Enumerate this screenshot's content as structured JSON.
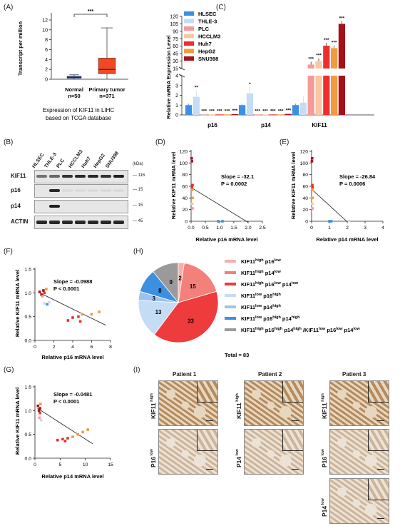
{
  "panels": {
    "A": "(A)",
    "B": "(B)",
    "C": "(C)",
    "D": "(D)",
    "E": "(E)",
    "F": "(F)",
    "G": "(G)",
    "H": "(H)",
    "I": "(I)"
  },
  "panel_A": {
    "ylabel": "Transcript per million",
    "yticks": [
      "0",
      "2",
      "4",
      "6",
      "8",
      "10",
      "12"
    ],
    "sig": "***",
    "groups": [
      {
        "name": "Normal",
        "n": "n=50",
        "q1": 0.2,
        "median": 0.4,
        "q3": 0.6,
        "min": 0.0,
        "max": 0.9,
        "color": "#3b5bbd"
      },
      {
        "name": "Primary tumor",
        "n": "n=371",
        "q1": 1.1,
        "median": 2.0,
        "q3": 4.3,
        "min": 0.0,
        "max": 10.4,
        "color": "#ef4a25"
      }
    ],
    "caption_line1": "Expression of KIF11 in LIHC",
    "caption_line2": "based on TCGA database"
  },
  "panel_B": {
    "lanes": [
      "HLSEC",
      "THLE-3",
      "PLC",
      "HCCLM3",
      "Huh7",
      "HepG2",
      "SNU398"
    ],
    "kda_label": "(kDa)",
    "rows": [
      {
        "name": "KIF11",
        "mw": "116"
      },
      {
        "name": "p16",
        "mw": "15"
      },
      {
        "name": "p14",
        "mw": "15"
      },
      {
        "name": "ACTIN",
        "mw": "45"
      }
    ]
  },
  "panel_C": {
    "ylabel": "Relative mRNA Expression Level",
    "top_ticks": [
      "15",
      "30",
      "45",
      "60",
      "75",
      "90",
      "105",
      "120"
    ],
    "bottom_ticks": [
      "0",
      "1",
      "2",
      "3",
      "4"
    ],
    "legend": [
      {
        "name": "HLSEC",
        "color": "#3d8fe0"
      },
      {
        "name": "THLE-3",
        "color": "#c5dcf5"
      },
      {
        "name": "PLC",
        "color": "#f59a96"
      },
      {
        "name": "HCCLM3",
        "color": "#f8c8a0"
      },
      {
        "name": "Huh7",
        "color": "#ee2e2e"
      },
      {
        "name": "HepG2",
        "color": "#f39a3c"
      },
      {
        "name": "SNU398",
        "color": "#a6101a"
      }
    ],
    "categories": [
      "p16",
      "p14",
      "KIF11"
    ],
    "chart_data": {
      "type": "bar",
      "categories": [
        "p16",
        "p14",
        "KIF11"
      ],
      "series": [
        {
          "name": "HLSEC",
          "values": [
            1.0,
            1.0,
            1.0
          ]
        },
        {
          "name": "THLE-3",
          "values": [
            1.85,
            2.2,
            1.25
          ]
        },
        {
          "name": "PLC",
          "values": [
            0.05,
            0.05,
            23
          ]
        },
        {
          "name": "HCCLM3",
          "values": [
            0.05,
            0.05,
            30
          ]
        },
        {
          "name": "Huh7",
          "values": [
            0.05,
            0.05,
            61
          ]
        },
        {
          "name": "HepG2",
          "values": [
            0.05,
            0.05,
            56
          ]
        },
        {
          "name": "SNU398",
          "values": [
            0.08,
            0.1,
            105
          ]
        }
      ],
      "sig": [
        [
          "",
          "**",
          "***",
          "***",
          "***",
          "***",
          "***"
        ],
        [
          "",
          "*",
          "***",
          "***",
          "***",
          "***",
          "***"
        ],
        [
          "",
          "",
          "***",
          "***",
          "***",
          "***",
          "***"
        ]
      ]
    }
  },
  "panel_D": {
    "xlabel": "Relative p16 mRNA level",
    "ylabel": "Relative KIF11 mRNA level",
    "xticks": [
      "0.0",
      "0.5",
      "1.0",
      "1.5",
      "2.0",
      "2.5"
    ],
    "yticks": [
      "0",
      "20",
      "40",
      "60",
      "80",
      "100",
      "120"
    ],
    "slope": "Slope = -32.1",
    "p": "P = 0.0002"
  },
  "panel_E": {
    "xlabel": "Relative p14 mRNA level",
    "ylabel": "Relative KIF11 mRNA level",
    "xticks": [
      "0",
      "1",
      "2",
      "3",
      "4"
    ],
    "yticks": [
      "0",
      "20",
      "40",
      "60",
      "80",
      "100",
      "120"
    ],
    "slope": "Slope = -26.84",
    "p": "P = 0.0006"
  },
  "panel_F": {
    "xlabel": "Relative p16 mRNA level",
    "ylabel": "Relative KIF11 mRNA level",
    "xticks": [
      "0",
      "2",
      "4",
      "6",
      "8"
    ],
    "yticks": [
      "0.0",
      "0.5",
      "1.0",
      "1.5"
    ],
    "slope": "Slope = -0.0988",
    "p": "P < 0.0001"
  },
  "panel_G": {
    "xlabel": "Relative p14 mRNA level",
    "ylabel": "Relative KIF11 mRNA level",
    "xticks": [
      "0",
      "5",
      "10",
      "15"
    ],
    "yticks": [
      "0.0",
      "0.5",
      "1.0",
      "1.5"
    ],
    "slope": "Slope = -0.0481",
    "p": "P < 0.0001"
  },
  "panel_H": {
    "total": "Total = 83",
    "chart_data": {
      "type": "pie",
      "values": [
        15,
        33,
        13,
        3,
        8,
        9,
        2
      ],
      "colors": [
        "#f4807c",
        "#ee3b3b",
        "#c5dcf5",
        "#9cc3ef",
        "#3d8fe0",
        "#9a9a9a",
        "#f6b0aa"
      ]
    },
    "legend": [
      {
        "color": "#f6b0aa",
        "a": "KIF11",
        "as": "high",
        "b": " p16",
        "bs": "low",
        "c": "",
        "cs": "",
        "d": ""
      },
      {
        "color": "#f4807c",
        "a": "KIF11",
        "as": "high",
        "b": " p14",
        "bs": "low",
        "c": "",
        "cs": "",
        "d": ""
      },
      {
        "color": "#ee3b3b",
        "a": "KIF11",
        "as": "high",
        "b": " p16",
        "bs": "low",
        "c": " p14",
        "cs": "low",
        "d": ""
      },
      {
        "color": "#c5dcf5",
        "a": "KIF11",
        "as": "low",
        "b": " p16",
        "bs": "high",
        "c": "",
        "cs": "",
        "d": ""
      },
      {
        "color": "#9cc3ef",
        "a": "KIF11",
        "as": "low",
        "b": " p14",
        "bs": "high",
        "c": "",
        "cs": "",
        "d": ""
      },
      {
        "color": "#3d8fe0",
        "a": "KIF11",
        "as": "low",
        "b": " p16",
        "bs": "high",
        "c": " p14",
        "cs": "high",
        "d": ""
      },
      {
        "color": "#9a9a9a",
        "a": "KIF11",
        "as": "high",
        "b": " p16",
        "bs": "high",
        "c": " p14",
        "cs": "high",
        "d": " /KIF11"
      }
    ],
    "legend_last_tail": [
      {
        "t": "low",
        "sup": true
      },
      {
        "t": " p16",
        "sup": false
      },
      {
        "t": "low",
        "sup": true
      },
      {
        "t": " p14",
        "sup": false
      },
      {
        "t": "low",
        "sup": true
      }
    ]
  },
  "panel_I": {
    "patients": [
      "Patient 1",
      "Patient 2",
      "Patient 3"
    ],
    "p1_rows": [
      {
        "main": "KIF11",
        "sup": "high"
      },
      {
        "main": "P16",
        "sup": "low"
      }
    ],
    "p2_rows": [
      {
        "main": "KIF11",
        "sup": "high"
      },
      {
        "main": "P14",
        "sup": "low"
      }
    ],
    "p3_rows": [
      {
        "main": "KIF11",
        "sup": "high"
      },
      {
        "main": "P16",
        "sup": "low"
      },
      {
        "main": "P14",
        "sup": "low"
      }
    ]
  }
}
